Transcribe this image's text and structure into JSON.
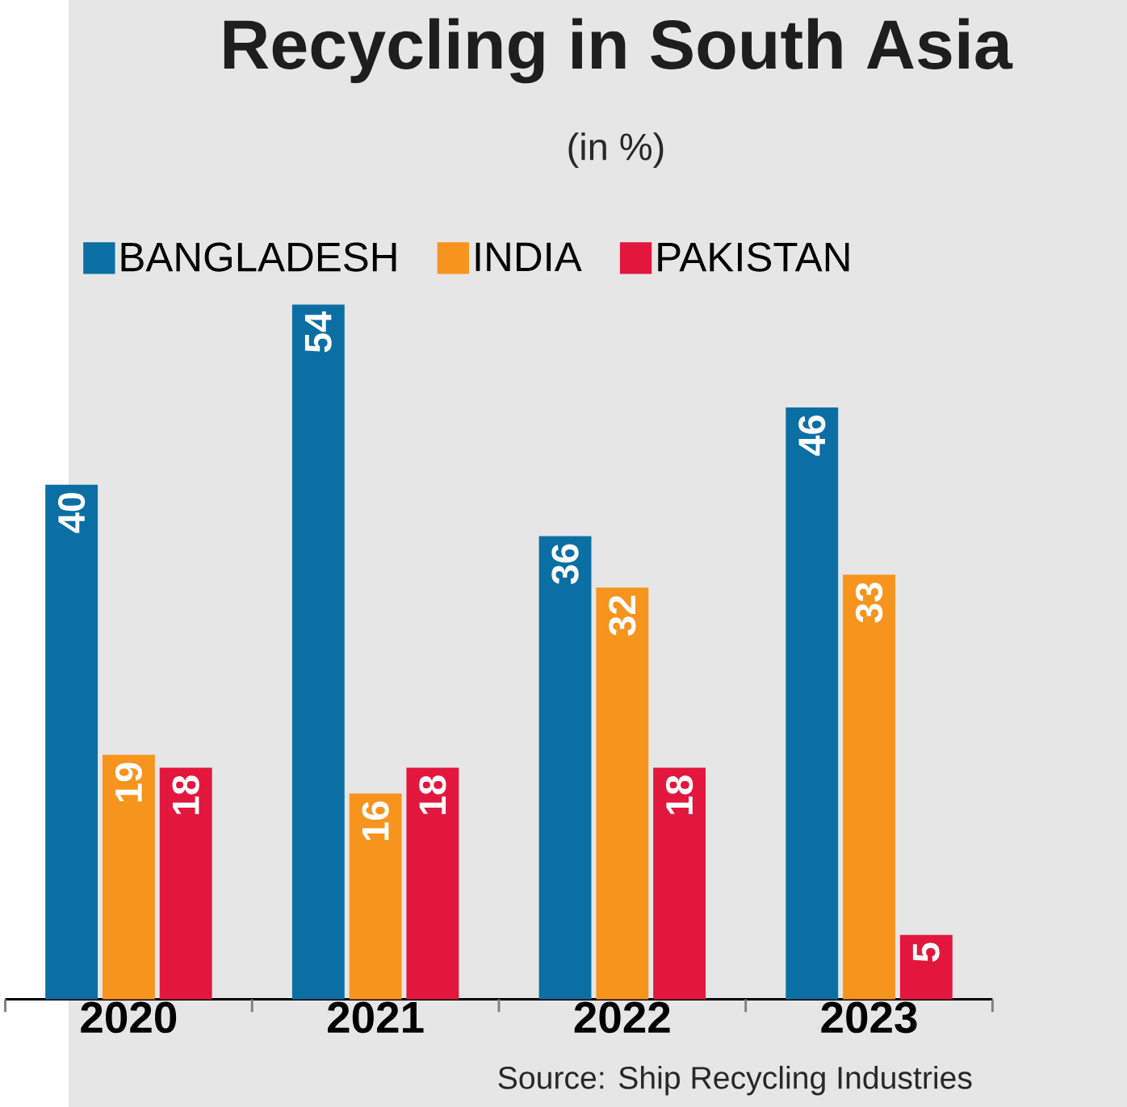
{
  "chart_data": {
    "type": "bar",
    "title": "Recycling in South Asia",
    "subtitle": "(in %)",
    "categories": [
      "2020",
      "2021",
      "2022",
      "2023"
    ],
    "series": [
      {
        "name": "BANGLADESH",
        "color": "#0b6fa4",
        "values": [
          40,
          54,
          36,
          46
        ]
      },
      {
        "name": "INDIA",
        "color": "#f7941d",
        "values": [
          19,
          16,
          32,
          33
        ]
      },
      {
        "name": "PAKISTAN",
        "color": "#e3173e",
        "values": [
          18,
          18,
          18,
          5
        ]
      }
    ],
    "data_labels": true,
    "legend": "top",
    "annotations": [
      "Source: Ship Recycling Industries"
    ]
  }
}
